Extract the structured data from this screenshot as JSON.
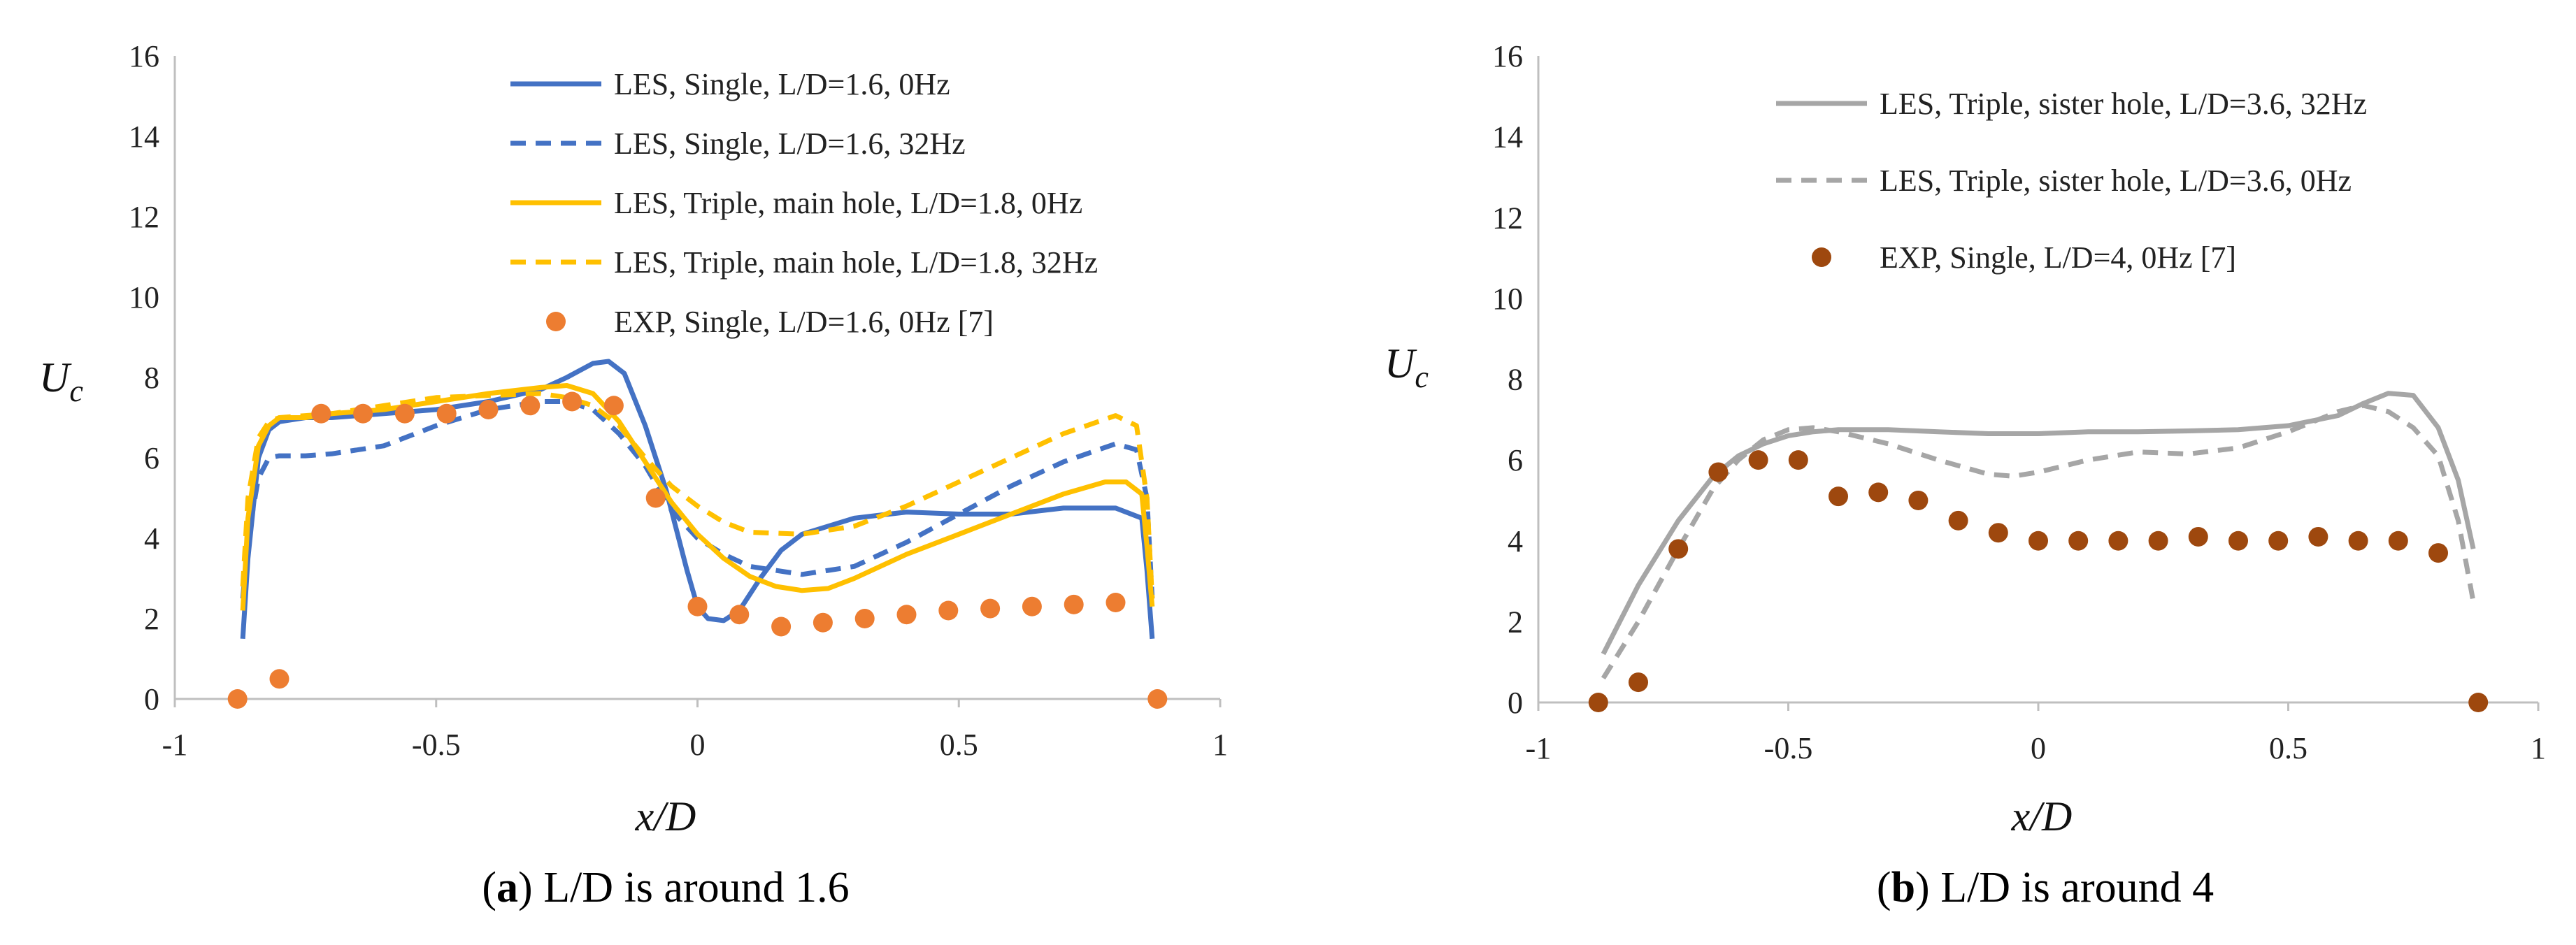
{
  "chart_data": [
    {
      "type": "line",
      "id": "a",
      "caption_letter": "a",
      "caption_text": "L/D is around 1.6",
      "xlabel": "x/D",
      "ylabel": "Uc",
      "xlim": [
        -1,
        1
      ],
      "ylim": [
        0,
        16
      ],
      "xticks": [
        -1,
        -0.5,
        0,
        0.5,
        1
      ],
      "xtick_labels": [
        "-1",
        "-0.5",
        "0",
        "0.5",
        "1"
      ],
      "yticks": [
        0,
        2,
        4,
        6,
        8,
        10,
        12,
        14,
        16
      ],
      "ytick_labels": [
        "0",
        "2",
        "4",
        "6",
        "8",
        "10",
        "12",
        "14",
        "16"
      ],
      "series": [
        {
          "name": "LES, Single, L/D=1.6, 0Hz",
          "color": "#4472C4",
          "dash": "solid",
          "kind": "line",
          "x": [
            -0.87,
            -0.86,
            -0.84,
            -0.82,
            -0.8,
            -0.75,
            -0.7,
            -0.6,
            -0.5,
            -0.4,
            -0.3,
            -0.25,
            -0.2,
            -0.17,
            -0.14,
            -0.1,
            -0.06,
            -0.02,
            0.0,
            0.02,
            0.05,
            0.08,
            0.12,
            0.16,
            0.2,
            0.3,
            0.4,
            0.5,
            0.6,
            0.7,
            0.8,
            0.85,
            0.86,
            0.87
          ],
          "y": [
            1.5,
            3.5,
            6.0,
            6.7,
            6.9,
            7.0,
            7.0,
            7.1,
            7.2,
            7.4,
            7.7,
            8.0,
            8.35,
            8.4,
            8.1,
            6.8,
            5.2,
            3.2,
            2.3,
            2.0,
            1.95,
            2.2,
            3.0,
            3.7,
            4.1,
            4.5,
            4.65,
            4.6,
            4.6,
            4.75,
            4.75,
            4.5,
            3.2,
            1.5
          ]
        },
        {
          "name": "LES, Single, L/D=1.6, 32Hz",
          "color": "#4472C4",
          "dash": "dash",
          "kind": "line",
          "x": [
            -0.87,
            -0.86,
            -0.84,
            -0.82,
            -0.8,
            -0.75,
            -0.7,
            -0.6,
            -0.5,
            -0.4,
            -0.3,
            -0.25,
            -0.2,
            -0.15,
            -0.1,
            -0.05,
            0.0,
            0.05,
            0.1,
            0.2,
            0.3,
            0.4,
            0.5,
            0.6,
            0.7,
            0.8,
            0.84,
            0.86,
            0.87
          ],
          "y": [
            2.5,
            4.0,
            5.5,
            6.0,
            6.05,
            6.05,
            6.1,
            6.3,
            6.8,
            7.2,
            7.4,
            7.4,
            7.2,
            6.6,
            5.8,
            4.7,
            4.0,
            3.6,
            3.3,
            3.1,
            3.3,
            3.9,
            4.6,
            5.3,
            5.9,
            6.35,
            6.2,
            5.0,
            2.5
          ]
        },
        {
          "name": "LES, Triple, main hole, L/D=1.8, 0Hz",
          "color": "#FFC000",
          "dash": "solid",
          "kind": "line",
          "x": [
            -0.87,
            -0.86,
            -0.84,
            -0.82,
            -0.8,
            -0.75,
            -0.7,
            -0.6,
            -0.5,
            -0.4,
            -0.3,
            -0.25,
            -0.2,
            -0.15,
            -0.1,
            -0.05,
            0.0,
            0.05,
            0.1,
            0.15,
            0.2,
            0.25,
            0.3,
            0.4,
            0.5,
            0.6,
            0.7,
            0.78,
            0.82,
            0.85,
            0.86,
            0.87
          ],
          "y": [
            2.2,
            4.5,
            6.3,
            6.8,
            7.0,
            7.0,
            7.1,
            7.2,
            7.4,
            7.6,
            7.75,
            7.8,
            7.6,
            6.9,
            5.9,
            4.9,
            4.1,
            3.5,
            3.05,
            2.8,
            2.7,
            2.75,
            3.0,
            3.6,
            4.1,
            4.6,
            5.1,
            5.4,
            5.4,
            5.1,
            3.8,
            2.3
          ]
        },
        {
          "name": "LES, Triple, main hole, L/D=1.8, 32Hz",
          "color": "#FFC000",
          "dash": "dash",
          "kind": "line",
          "x": [
            -0.87,
            -0.86,
            -0.84,
            -0.82,
            -0.8,
            -0.75,
            -0.7,
            -0.6,
            -0.5,
            -0.4,
            -0.3,
            -0.25,
            -0.2,
            -0.15,
            -0.1,
            -0.05,
            0.0,
            0.05,
            0.1,
            0.2,
            0.3,
            0.4,
            0.5,
            0.6,
            0.7,
            0.8,
            0.84,
            0.86,
            0.87
          ],
          "y": [
            2.8,
            5.0,
            6.5,
            6.9,
            7.0,
            7.05,
            7.1,
            7.3,
            7.5,
            7.55,
            7.6,
            7.5,
            7.3,
            6.8,
            6.0,
            5.3,
            4.8,
            4.4,
            4.15,
            4.1,
            4.3,
            4.8,
            5.4,
            6.0,
            6.6,
            7.05,
            6.8,
            5.0,
            2.5
          ]
        },
        {
          "name": "EXP, Single, L/D=1.6, 0Hz [7]",
          "color": "#ED7D31",
          "kind": "scatter",
          "x": [
            -0.88,
            -0.8,
            -0.72,
            -0.64,
            -0.56,
            -0.48,
            -0.4,
            -0.32,
            -0.24,
            -0.16,
            -0.08,
            0.0,
            0.08,
            0.16,
            0.24,
            0.32,
            0.4,
            0.48,
            0.56,
            0.64,
            0.72,
            0.8,
            0.88
          ],
          "y": [
            0.0,
            0.5,
            7.1,
            7.1,
            7.1,
            7.1,
            7.2,
            7.3,
            7.4,
            7.3,
            5.0,
            2.3,
            2.1,
            1.8,
            1.9,
            2.0,
            2.1,
            2.2,
            2.25,
            2.3,
            2.35,
            2.4,
            0.0
          ]
        }
      ]
    },
    {
      "type": "line",
      "id": "b",
      "caption_letter": "b",
      "caption_text": "L/D is around 4",
      "xlabel": "x/D",
      "ylabel": "Uc",
      "xlim": [
        -1,
        1
      ],
      "ylim": [
        0,
        16
      ],
      "xticks": [
        -1,
        -0.5,
        0,
        0.5,
        1
      ],
      "xtick_labels": [
        "-1",
        "-0.5",
        "0",
        "0.5",
        "1"
      ],
      "yticks": [
        0,
        2,
        4,
        6,
        8,
        10,
        12,
        14,
        16
      ],
      "ytick_labels": [
        "0",
        "2",
        "4",
        "6",
        "8",
        "10",
        "12",
        "14",
        "16"
      ],
      "series": [
        {
          "name": "LES, Triple, sister hole, L/D=3.6, 32Hz",
          "color": "#A6A6A6",
          "dash": "solid",
          "kind": "line",
          "x": [
            -0.87,
            -0.8,
            -0.72,
            -0.65,
            -0.6,
            -0.55,
            -0.5,
            -0.45,
            -0.4,
            -0.3,
            -0.2,
            -0.1,
            0.0,
            0.1,
            0.2,
            0.3,
            0.4,
            0.5,
            0.6,
            0.65,
            0.7,
            0.75,
            0.8,
            0.84,
            0.87
          ],
          "y": [
            1.2,
            2.9,
            4.5,
            5.6,
            6.1,
            6.4,
            6.6,
            6.7,
            6.75,
            6.75,
            6.7,
            6.65,
            6.65,
            6.7,
            6.7,
            6.72,
            6.75,
            6.85,
            7.1,
            7.4,
            7.65,
            7.6,
            6.8,
            5.5,
            3.8
          ]
        },
        {
          "name": "LES, Triple, sister hole, L/D=3.6, 0Hz",
          "color": "#A6A6A6",
          "dash": "dash",
          "kind": "line",
          "x": [
            -0.87,
            -0.8,
            -0.72,
            -0.65,
            -0.6,
            -0.55,
            -0.5,
            -0.45,
            -0.4,
            -0.3,
            -0.2,
            -0.1,
            -0.05,
            0.0,
            0.1,
            0.2,
            0.3,
            0.4,
            0.5,
            0.6,
            0.65,
            0.7,
            0.75,
            0.8,
            0.84,
            0.87
          ],
          "y": [
            0.6,
            2.0,
            3.8,
            5.3,
            6.0,
            6.5,
            6.75,
            6.8,
            6.7,
            6.4,
            6.0,
            5.65,
            5.6,
            5.7,
            6.0,
            6.2,
            6.15,
            6.3,
            6.7,
            7.2,
            7.35,
            7.2,
            6.8,
            6.1,
            4.5,
            2.5
          ]
        },
        {
          "name": "EXP, Single, L/D=4, 0Hz [7]",
          "color": "#9E480E",
          "kind": "scatter",
          "x": [
            -0.88,
            -0.8,
            -0.72,
            -0.64,
            -0.56,
            -0.48,
            -0.4,
            -0.32,
            -0.24,
            -0.16,
            -0.08,
            0.0,
            0.08,
            0.16,
            0.24,
            0.32,
            0.4,
            0.48,
            0.56,
            0.64,
            0.72,
            0.8,
            0.88
          ],
          "y": [
            0.0,
            0.5,
            3.8,
            5.7,
            6.0,
            6.0,
            5.1,
            5.2,
            5.0,
            4.5,
            4.2,
            4.0,
            4.0,
            4.0,
            4.0,
            4.1,
            4.0,
            4.0,
            4.1,
            4.0,
            4.0,
            3.7,
            0.0
          ]
        }
      ]
    }
  ]
}
